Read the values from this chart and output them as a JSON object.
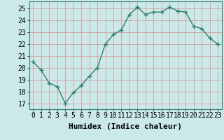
{
  "x": [
    0,
    1,
    2,
    3,
    4,
    5,
    6,
    7,
    8,
    9,
    10,
    11,
    12,
    13,
    14,
    15,
    16,
    17,
    18,
    19,
    20,
    21,
    22,
    23
  ],
  "y": [
    20.5,
    19.8,
    18.7,
    18.4,
    17.0,
    17.9,
    18.5,
    19.3,
    20.0,
    22.0,
    22.8,
    23.2,
    24.5,
    25.1,
    24.5,
    24.7,
    24.7,
    25.1,
    24.8,
    24.7,
    23.5,
    23.3,
    22.5,
    22.0
  ],
  "xlabel": "Humidex (Indice chaleur)",
  "ylim": [
    16.5,
    25.6
  ],
  "yticks": [
    17,
    18,
    19,
    20,
    21,
    22,
    23,
    24,
    25
  ],
  "xticks": [
    0,
    1,
    2,
    3,
    4,
    5,
    6,
    7,
    8,
    9,
    10,
    11,
    12,
    13,
    14,
    15,
    16,
    17,
    18,
    19,
    20,
    21,
    22,
    23
  ],
  "line_color": "#2e7d6e",
  "marker": "+",
  "bg_color": "#cce9e9",
  "grid_color": "#d4a0a0",
  "xlabel_fontsize": 8,
  "tick_fontsize": 7
}
